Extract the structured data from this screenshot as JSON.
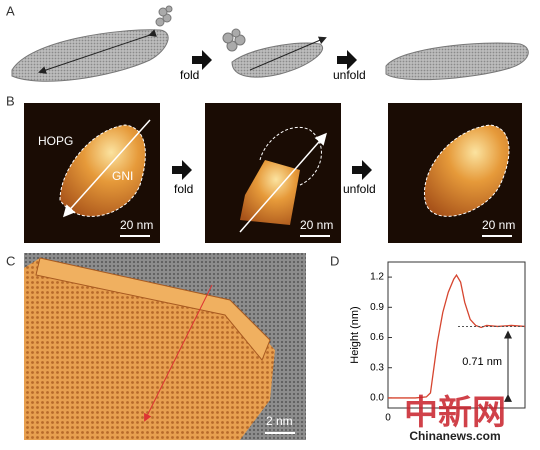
{
  "panels": {
    "a": {
      "label": "A",
      "steps": [
        "fold",
        "unfold"
      ]
    },
    "b": {
      "label": "B",
      "substrate": "HOPG",
      "flake": "GNI",
      "steps": [
        "fold",
        "unfold"
      ],
      "scale_bars": [
        "20 nm",
        "20 nm",
        "20 nm"
      ]
    },
    "c": {
      "label": "C",
      "scale_bar": "2 nm"
    }
  },
  "chart_data": {
    "type": "line",
    "label": "D",
    "ylabel": "Height (nm)",
    "x": [
      0,
      1,
      2,
      2.8,
      3.1,
      3.3,
      3.6,
      4.0,
      4.4,
      4.8,
      5.0,
      5.3,
      5.6,
      6.0,
      6.4,
      6.8,
      7.2,
      8,
      9,
      10
    ],
    "series": [
      {
        "color": "#d6452f",
        "values": [
          0,
          0,
          0,
          0.01,
          0.05,
          0.25,
          0.55,
          0.85,
          1.05,
          1.18,
          1.22,
          1.15,
          0.95,
          0.78,
          0.72,
          0.7,
          0.72,
          0.71,
          0.72,
          0.71
        ]
      }
    ],
    "xlim": [
      0,
      10
    ],
    "xticks": [
      0
    ],
    "ylim": [
      -0.1,
      1.35
    ],
    "yticks": [
      {
        "value": 0,
        "label": "0.0"
      },
      0.3,
      0.6,
      0.9,
      1.2
    ],
    "annotation": {
      "value": 0.71,
      "label": "0.71 nm"
    }
  },
  "watermark": {
    "text": "中新网",
    "site": "Chinanews.com"
  }
}
